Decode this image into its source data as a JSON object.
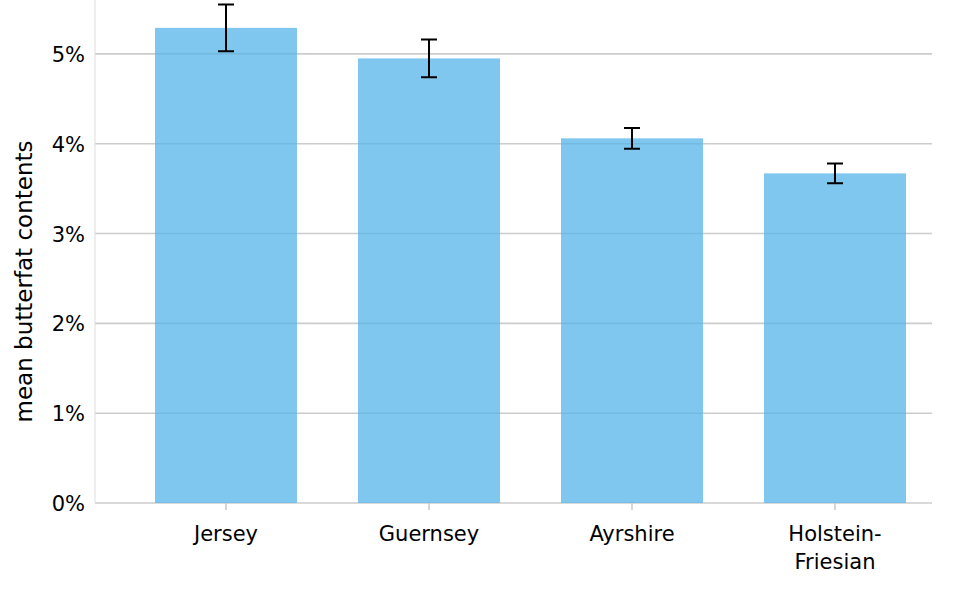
{
  "chart_data": {
    "type": "bar",
    "y_label": "mean butterfat contents",
    "categories": [
      "Jersey",
      "Guernsey",
      "Ayrshire",
      "Holstein-Friesian"
    ],
    "values": [
      5.29,
      4.95,
      4.06,
      3.67
    ],
    "errors": [
      0.26,
      0.21,
      0.115,
      0.11
    ],
    "color": "#56B4E9",
    "ylim": [
      0,
      5.6
    ],
    "yticks": [
      {
        "value": 0,
        "label": "0%"
      },
      {
        "value": 1,
        "label": "1%"
      },
      {
        "value": 2,
        "label": "2%"
      },
      {
        "value": 3,
        "label": "3%"
      },
      {
        "value": 4,
        "label": "4%"
      },
      {
        "value": 5,
        "label": "5%"
      }
    ],
    "grid": true
  }
}
